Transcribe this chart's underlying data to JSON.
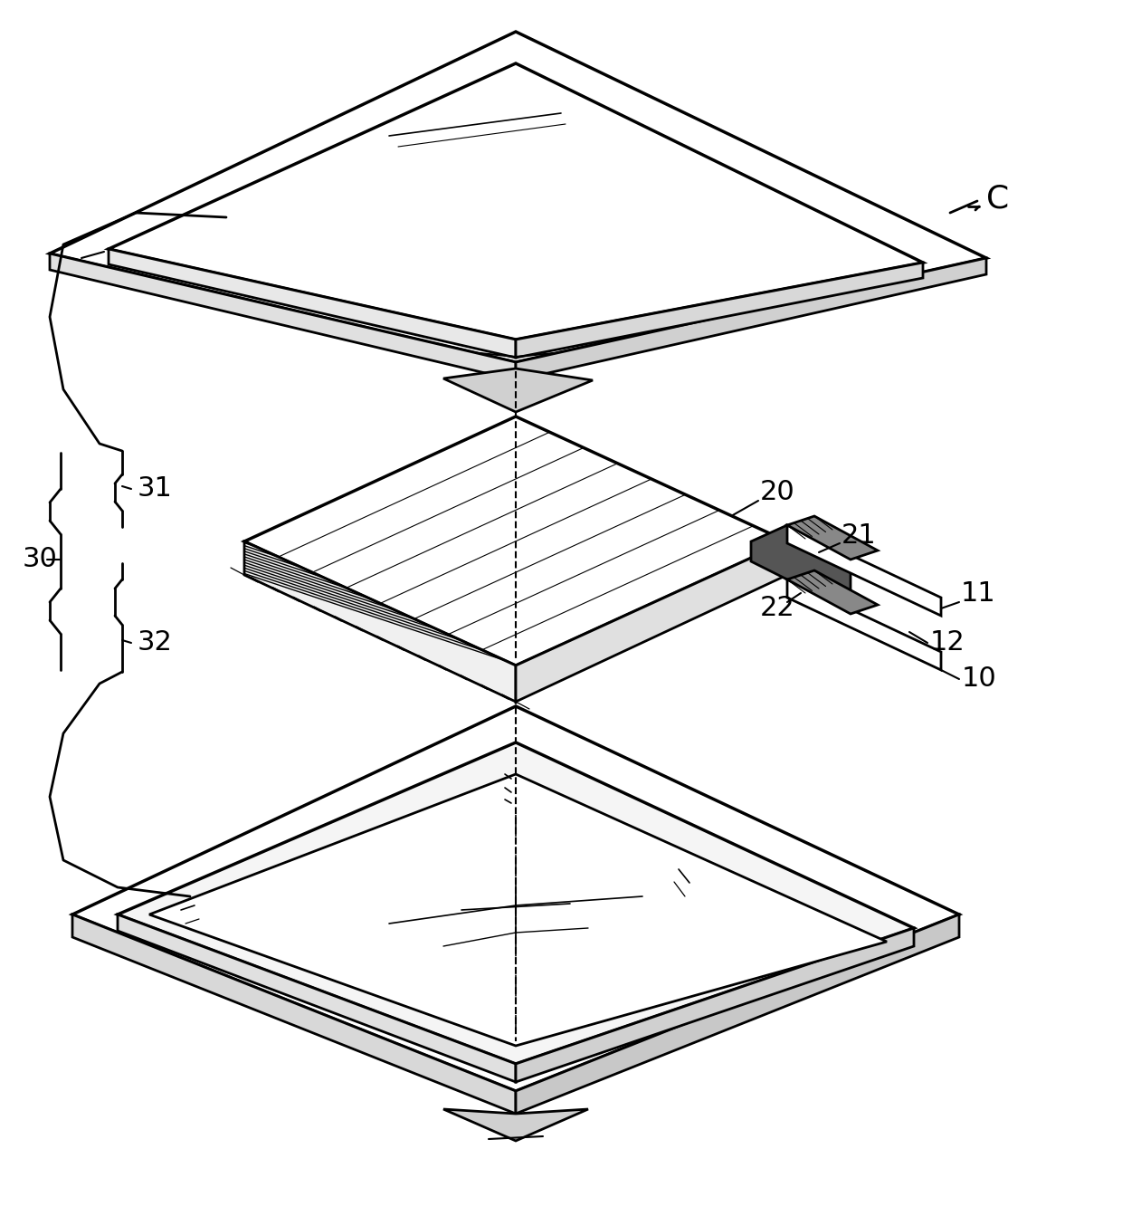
{
  "bg_color": "#ffffff",
  "line_color": "#000000",
  "lw": 2.0,
  "lw_thin": 1.0,
  "lw_thick": 3.0,
  "figsize": [
    12.4,
    13.43
  ],
  "dpi": 100
}
